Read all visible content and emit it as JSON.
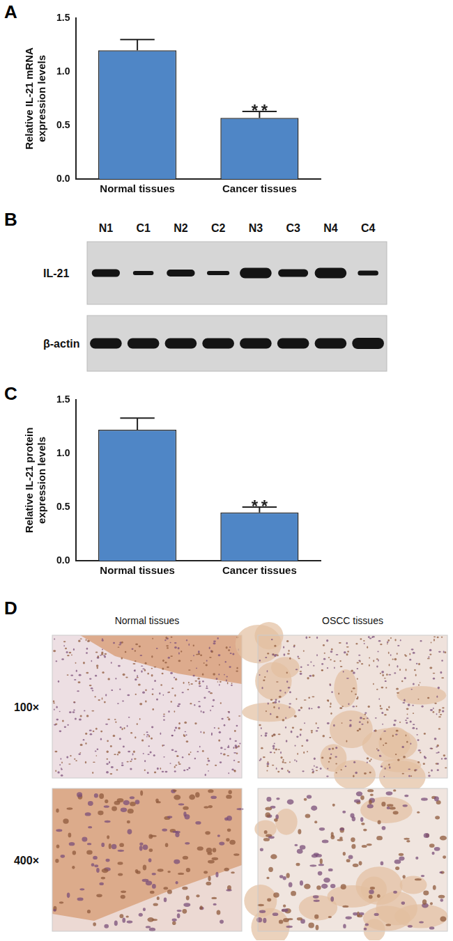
{
  "chart_data": [
    {
      "type": "bar",
      "title": "A",
      "categories": [
        "Normal tissues",
        "Cancer tissues"
      ],
      "values": [
        1.2,
        0.57
      ],
      "errors": [
        0.1,
        0.06
      ],
      "color": "#4f86c6",
      "y_label": [
        "Relative IL-21 mRNA",
        "expression levels"
      ],
      "ylim": [
        0,
        1.5
      ],
      "yticks": [
        {
          "value": 0,
          "label": "0.0"
        },
        0.5,
        {
          "value": 1,
          "label": "1.0"
        },
        1.5
      ],
      "grid": false,
      "annotations": [
        {
          "category": "Cancer tissues",
          "text": "**"
        }
      ]
    },
    {
      "type": "bar",
      "title": "C",
      "categories": [
        "Normal tissues",
        "Cancer tissues"
      ],
      "values": [
        1.22,
        0.45
      ],
      "errors": [
        0.11,
        0.05
      ],
      "color": "#4f86c6",
      "y_label": [
        "Relative IL-21 protein",
        "expression levels"
      ],
      "ylim": [
        0,
        1.5
      ],
      "yticks": [
        {
          "value": 0,
          "label": "0.0"
        },
        0.5,
        {
          "value": 1,
          "label": "1.0"
        },
        1.5
      ],
      "grid": false,
      "annotations": [
        {
          "category": "Cancer tissues",
          "text": "**"
        }
      ]
    }
  ],
  "blot": {
    "title": "B",
    "lanes": [
      "N1",
      "C1",
      "N2",
      "C2",
      "N3",
      "C3",
      "N4",
      "C4"
    ],
    "rows": [
      "IL-21",
      "β-actin"
    ]
  },
  "ihc": {
    "title": "D",
    "columns": [
      "Normal tissues",
      "OSCC tissues"
    ],
    "rows": [
      "100×",
      "400×"
    ]
  }
}
